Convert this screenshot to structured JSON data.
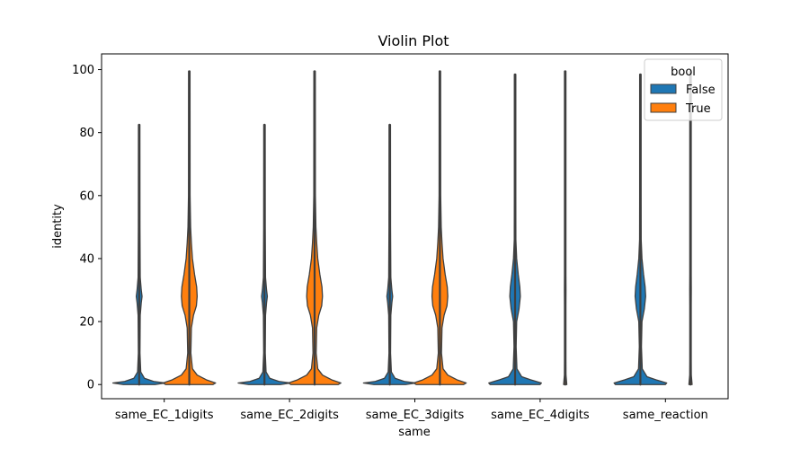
{
  "chart_data": {
    "type": "violin",
    "title": "Violin Plot",
    "xlabel": "same",
    "ylabel": "identity",
    "ylim": [
      -4.5,
      105
    ],
    "yticks": [
      0,
      20,
      40,
      60,
      80,
      100
    ],
    "categories": [
      "same_EC_1digits",
      "same_EC_2digits",
      "same_EC_3digits",
      "same_EC_4digits",
      "same_reaction"
    ],
    "legend": {
      "title": "bool",
      "position": "upper right",
      "entries": [
        {
          "label": "False",
          "color": "#1f77b4"
        },
        {
          "label": "True",
          "color": "#ff7f0e"
        }
      ]
    },
    "series": [
      {
        "name": "False",
        "color": "#1f77b4",
        "violins": [
          {
            "category": "same_EC_1digits",
            "min": 0,
            "max": 82.5,
            "profile": [
              [
                0,
                0.6
              ],
              [
                0.5,
                1
              ],
              [
                1,
                0.55
              ],
              [
                2,
                0.2
              ],
              [
                4,
                0.06
              ],
              [
                10,
                0.03
              ],
              [
                22,
                0.04
              ],
              [
                26,
                0.08
              ],
              [
                28,
                0.11
              ],
              [
                30,
                0.08
              ],
              [
                34,
                0.04
              ],
              [
                50,
                0.03
              ],
              [
                82.5,
                0.02
              ]
            ]
          },
          {
            "category": "same_EC_2digits",
            "min": 0,
            "max": 82.5,
            "profile": [
              [
                0,
                0.6
              ],
              [
                0.5,
                1
              ],
              [
                1,
                0.55
              ],
              [
                2,
                0.2
              ],
              [
                4,
                0.06
              ],
              [
                10,
                0.03
              ],
              [
                22,
                0.04
              ],
              [
                26,
                0.08
              ],
              [
                28,
                0.11
              ],
              [
                30,
                0.08
              ],
              [
                34,
                0.04
              ],
              [
                50,
                0.03
              ],
              [
                82.5,
                0.02
              ]
            ]
          },
          {
            "category": "same_EC_3digits",
            "min": 0,
            "max": 82.5,
            "profile": [
              [
                0,
                0.6
              ],
              [
                0.5,
                1
              ],
              [
                1,
                0.55
              ],
              [
                2,
                0.2
              ],
              [
                4,
                0.06
              ],
              [
                10,
                0.03
              ],
              [
                22,
                0.04
              ],
              [
                26,
                0.08
              ],
              [
                28,
                0.11
              ],
              [
                30,
                0.08
              ],
              [
                34,
                0.04
              ],
              [
                50,
                0.03
              ],
              [
                82.5,
                0.02
              ]
            ]
          },
          {
            "category": "same_EC_4digits",
            "min": 0,
            "max": 98.5,
            "profile": [
              [
                0,
                0.95
              ],
              [
                0.5,
                1
              ],
              [
                1.5,
                0.6
              ],
              [
                2.5,
                0.25
              ],
              [
                5,
                0.07
              ],
              [
                12,
                0.04
              ],
              [
                20,
                0.06
              ],
              [
                24,
                0.15
              ],
              [
                28,
                0.2
              ],
              [
                31,
                0.18
              ],
              [
                35,
                0.12
              ],
              [
                40,
                0.06
              ],
              [
                46,
                0.03
              ],
              [
                60,
                0.02
              ],
              [
                98.5,
                0.02
              ]
            ]
          },
          {
            "category": "same_reaction",
            "min": 0,
            "max": 98.5,
            "profile": [
              [
                0,
                0.95
              ],
              [
                0.5,
                1
              ],
              [
                1.5,
                0.6
              ],
              [
                2.5,
                0.25
              ],
              [
                5,
                0.07
              ],
              [
                12,
                0.04
              ],
              [
                20,
                0.06
              ],
              [
                24,
                0.15
              ],
              [
                28,
                0.2
              ],
              [
                31,
                0.18
              ],
              [
                35,
                0.12
              ],
              [
                40,
                0.06
              ],
              [
                46,
                0.03
              ],
              [
                60,
                0.02
              ],
              [
                98.5,
                0.02
              ]
            ]
          }
        ]
      },
      {
        "name": "True",
        "color": "#ff7f0e",
        "violins": [
          {
            "category": "same_EC_1digits",
            "min": 0,
            "max": 99.5,
            "profile": [
              [
                0,
                0.9
              ],
              [
                0.5,
                1
              ],
              [
                1.5,
                0.65
              ],
              [
                3,
                0.3
              ],
              [
                5,
                0.12
              ],
              [
                10,
                0.06
              ],
              [
                18,
                0.08
              ],
              [
                22,
                0.16
              ],
              [
                25,
                0.27
              ],
              [
                28,
                0.3
              ],
              [
                31,
                0.28
              ],
              [
                35,
                0.2
              ],
              [
                40,
                0.12
              ],
              [
                45,
                0.08
              ],
              [
                50,
                0.05
              ],
              [
                60,
                0.03
              ],
              [
                99.5,
                0.02
              ]
            ]
          },
          {
            "category": "same_EC_2digits",
            "min": 0,
            "max": 99.5,
            "profile": [
              [
                0,
                0.9
              ],
              [
                0.5,
                1
              ],
              [
                1.5,
                0.65
              ],
              [
                3,
                0.3
              ],
              [
                5,
                0.12
              ],
              [
                10,
                0.06
              ],
              [
                18,
                0.08
              ],
              [
                22,
                0.16
              ],
              [
                25,
                0.27
              ],
              [
                28,
                0.3
              ],
              [
                31,
                0.28
              ],
              [
                35,
                0.2
              ],
              [
                40,
                0.12
              ],
              [
                45,
                0.08
              ],
              [
                50,
                0.05
              ],
              [
                60,
                0.03
              ],
              [
                99.5,
                0.02
              ]
            ]
          },
          {
            "category": "same_EC_3digits",
            "min": 0,
            "max": 99.5,
            "profile": [
              [
                0,
                0.9
              ],
              [
                0.5,
                1
              ],
              [
                1.5,
                0.65
              ],
              [
                3,
                0.3
              ],
              [
                5,
                0.12
              ],
              [
                10,
                0.06
              ],
              [
                18,
                0.08
              ],
              [
                22,
                0.16
              ],
              [
                25,
                0.27
              ],
              [
                28,
                0.3
              ],
              [
                31,
                0.28
              ],
              [
                35,
                0.2
              ],
              [
                40,
                0.12
              ],
              [
                45,
                0.08
              ],
              [
                50,
                0.05
              ],
              [
                60,
                0.03
              ],
              [
                99.5,
                0.02
              ]
            ]
          },
          {
            "category": "same_EC_4digits",
            "min": 0,
            "max": 99.5,
            "profile": [
              [
                0,
                0.06
              ],
              [
                1,
                0.05
              ],
              [
                3,
                0.03
              ],
              [
                8,
                0.02
              ],
              [
                25,
                0.02
              ],
              [
                30,
                0.03
              ],
              [
                35,
                0.02
              ],
              [
                99.5,
                0.015
              ]
            ]
          },
          {
            "category": "same_reaction",
            "min": 0,
            "max": 99.5,
            "profile": [
              [
                0,
                0.06
              ],
              [
                1,
                0.05
              ],
              [
                3,
                0.03
              ],
              [
                8,
                0.02
              ],
              [
                25,
                0.02
              ],
              [
                30,
                0.03
              ],
              [
                35,
                0.02
              ],
              [
                99.5,
                0.015
              ]
            ]
          }
        ]
      }
    ]
  }
}
